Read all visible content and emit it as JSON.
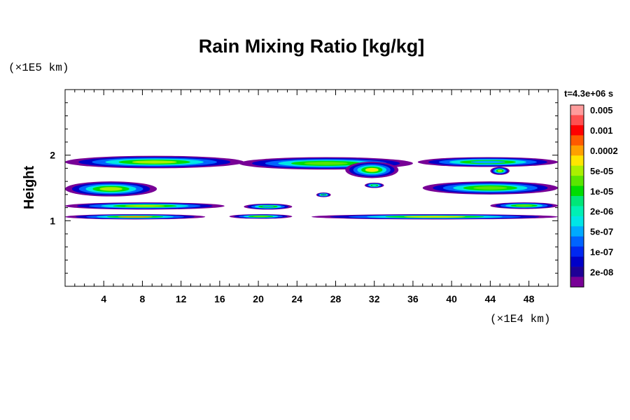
{
  "chart_data": {
    "type": "heatmap",
    "title": "Rain Mixing Ratio [kg/kg]",
    "ylabel": "Height",
    "x_unit_label": "(×1E4 km)",
    "y_unit_label": "(×1E5 km)",
    "time_label": "t=4.3e+06 s",
    "xlim": [
      0,
      51
    ],
    "ylim": [
      0,
      3
    ],
    "x_ticks": [
      {
        "value": 4,
        "label": "4"
      },
      {
        "value": 8,
        "label": "8"
      },
      {
        "value": 12,
        "label": "12"
      },
      {
        "value": 16,
        "label": "16"
      },
      {
        "value": 20,
        "label": "20"
      },
      {
        "value": 24,
        "label": "24"
      },
      {
        "value": 28,
        "label": "28"
      },
      {
        "value": 32,
        "label": "32"
      },
      {
        "value": 36,
        "label": "36"
      },
      {
        "value": 40,
        "label": "40"
      },
      {
        "value": 44,
        "label": "44"
      },
      {
        "value": 48,
        "label": "48"
      }
    ],
    "y_ticks": [
      {
        "value": 1,
        "label": "1"
      },
      {
        "value": 2,
        "label": "2"
      }
    ],
    "colorbar": [
      {
        "label": "0.005",
        "color": "#ff9c9c"
      },
      {
        "label": "",
        "color": "#ff5050"
      },
      {
        "label": "0.001",
        "color": "#ff0000"
      },
      {
        "label": "",
        "color": "#ff5a00"
      },
      {
        "label": "0.0002",
        "color": "#ffa000"
      },
      {
        "label": "",
        "color": "#ffe600"
      },
      {
        "label": "5e-05",
        "color": "#aaf000"
      },
      {
        "label": "",
        "color": "#5ae600"
      },
      {
        "label": "1e-05",
        "color": "#00dc00"
      },
      {
        "label": "",
        "color": "#00e678"
      },
      {
        "label": "2e-06",
        "color": "#00f0b4"
      },
      {
        "label": "",
        "color": "#00e6e6"
      },
      {
        "label": "5e-07",
        "color": "#00aaff"
      },
      {
        "label": "",
        "color": "#0064ff"
      },
      {
        "label": "1e-07",
        "color": "#0028f0"
      },
      {
        "label": "",
        "color": "#0000c8"
      },
      {
        "label": "2e-08",
        "color": "#1e0096"
      },
      {
        "label": "",
        "color": "#780096"
      }
    ],
    "cloud_layers": [
      {
        "x0": 0.0,
        "x1": 18.5,
        "y0": 1.8,
        "y1": 1.99,
        "peak": "#aaf000"
      },
      {
        "x0": 18.0,
        "x1": 36.0,
        "y0": 1.78,
        "y1": 1.97,
        "peak": "#5ae600"
      },
      {
        "x0": 29.0,
        "x1": 34.5,
        "y0": 1.65,
        "y1": 1.9,
        "peak": "#ffe600"
      },
      {
        "x0": 36.5,
        "x1": 51.0,
        "y0": 1.82,
        "y1": 1.97,
        "peak": "#00aaff"
      },
      {
        "x0": 44.0,
        "x1": 46.0,
        "y0": 1.7,
        "y1": 1.82,
        "peak": "#aaf000"
      },
      {
        "x0": 0.0,
        "x1": 9.5,
        "y0": 1.37,
        "y1": 1.6,
        "peak": "#aaf000"
      },
      {
        "x0": 37.0,
        "x1": 51.0,
        "y0": 1.4,
        "y1": 1.6,
        "peak": "#5ae600"
      },
      {
        "x0": 31.0,
        "x1": 33.0,
        "y0": 1.5,
        "y1": 1.58,
        "peak": "#00e6e6"
      },
      {
        "x0": 26.0,
        "x1": 27.5,
        "y0": 1.36,
        "y1": 1.43,
        "peak": "#0064ff"
      },
      {
        "x0": 0.0,
        "x1": 16.5,
        "y0": 1.17,
        "y1": 1.28,
        "peak": "#aaf000"
      },
      {
        "x0": 18.5,
        "x1": 23.5,
        "y0": 1.17,
        "y1": 1.26,
        "peak": "#00aaff"
      },
      {
        "x0": 44.0,
        "x1": 51.0,
        "y0": 1.18,
        "y1": 1.28,
        "peak": "#5ae600"
      },
      {
        "x0": 0.0,
        "x1": 14.5,
        "y0": 1.02,
        "y1": 1.1,
        "peak": "#ffa000"
      },
      {
        "x0": 17.0,
        "x1": 23.5,
        "y0": 1.03,
        "y1": 1.1,
        "peak": "#5ae600"
      },
      {
        "x0": 25.5,
        "x1": 51.0,
        "y0": 1.02,
        "y1": 1.1,
        "peak": "#ffe600"
      }
    ]
  }
}
